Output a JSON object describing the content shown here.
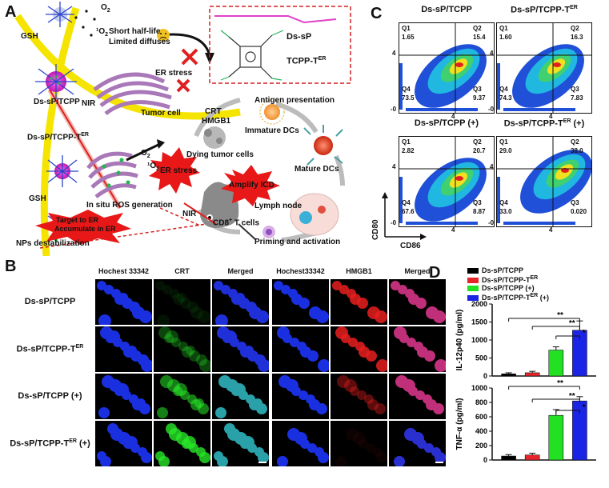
{
  "panels": {
    "a": "A",
    "b": "B",
    "c": "C",
    "d": "D"
  },
  "schematic": {
    "o2": "O",
    "o2_sub": "2",
    "singlet_o2": "¹O",
    "singlet_sub": "2",
    "short_half_life": "Short half-life",
    "limited_diffuses": "Limited diffuses",
    "gsh": "GSH",
    "ds_sp_tcpp": "Ds-sP/TCPP",
    "nir": "NIR",
    "tumor_cell": "Tumor cell",
    "ds_sp_tcpp_ter_main": "Ds-sP/TCPP-T",
    "ds_sp_tcpp_ter_sup": "ER",
    "er_stress": "ER stress",
    "er_stress_burst": "ER stress",
    "in_situ_ros": "In situ ROS generation",
    "target_er": "Target to ER",
    "accumulate_er": "Accumulate in ER",
    "nps_destab": "NPs destabilization",
    "legend_ds_sp": "Ds-sP",
    "legend_tcpp_main": "TCPP-T",
    "legend_tcpp_sup": "ER",
    "crt": "CRT",
    "hmgb1": "HMGB1",
    "antigen_presentation": "Antigen presentation",
    "immature_dcs": "Immature DCs",
    "dying_tumor_cells": "Dying tumor cells",
    "mature_dcs": "Mature DCs",
    "amplify_icd": "Amplify ICD",
    "lymph_node": "Lymph node",
    "nir2": "NIR",
    "cd8_main": "CD8",
    "cd8_sup": "+",
    "cd8_rest": " T cells",
    "priming": "Priming and activation"
  },
  "panel_b": {
    "headers_left": [
      "Hochest 33342",
      "CRT",
      "Merged"
    ],
    "headers_right": [
      "Hochest33342",
      "HMGB1",
      "Merged"
    ],
    "rows": [
      {
        "main": "Ds-sP/TCPP",
        "sup": "",
        "tail": ""
      },
      {
        "main": "Ds-sP/TCPP-T",
        "sup": "ER",
        "tail": ""
      },
      {
        "main": "Ds-sP/TCPP (+)",
        "sup": "",
        "tail": ""
      },
      {
        "main": "Ds-sP/TCPP-T",
        "sup": "ER",
        "tail": " (+)"
      }
    ]
  },
  "panel_c": {
    "plots": [
      {
        "title_main": "Ds-sP/TCPP",
        "title_sup": "",
        "title_tail": "",
        "q1": "1.65",
        "q2": "15.4",
        "q3": "9.37",
        "q4": "73.5"
      },
      {
        "title_main": "Ds-sP/TCPP-T",
        "title_sup": "ER",
        "title_tail": "",
        "q1": "1.60",
        "q2": "16.3",
        "q3": "7.83",
        "q4": "74.3"
      },
      {
        "title_main": "Ds-sP/TCPP (+)",
        "title_sup": "",
        "title_tail": "",
        "q1": "2.82",
        "q2": "20.7",
        "q3": "8.87",
        "q4": "67.6"
      },
      {
        "title_main": "Ds-sP/TCPP-T",
        "title_sup": "ER",
        "title_tail": " (+)",
        "q1": "29.0",
        "q2": "38.0",
        "q3": "0.020",
        "q4": "33.0"
      }
    ],
    "q_labels": [
      "Q1",
      "Q2",
      "Q3",
      "Q4"
    ],
    "xlabel": "CD86",
    "ylabel": "CD80",
    "tick4": "4",
    "tick_low": "-0"
  },
  "chart_data": [
    {
      "type": "bar",
      "categories": [
        "Ds-sP/TCPP",
        "Ds-sP/TCPP-TER",
        "Ds-sP/TCPP (+)",
        "Ds-sP/TCPP-TER (+)"
      ],
      "series": [
        {
          "name": "IL-12p40",
          "values": [
            60,
            90,
            720,
            1270
          ],
          "errors": [
            30,
            40,
            90,
            260
          ]
        }
      ],
      "ylabel": "IL-12p40 (pg/ml)",
      "ylim": [
        0,
        2000
      ],
      "yticks": [
        "0",
        "500",
        "1000",
        "1500",
        "2000"
      ],
      "colors": [
        "#000000",
        "#e8242b",
        "#22e022",
        "#1a24e6"
      ],
      "significance": [
        {
          "label": "**"
        },
        {
          "label": "**"
        },
        {
          "label": "*"
        }
      ]
    },
    {
      "type": "bar",
      "categories": [
        "Ds-sP/TCPP",
        "Ds-sP/TCPP-TER",
        "Ds-sP/TCPP (+)",
        "Ds-sP/TCPP-TER (+)"
      ],
      "series": [
        {
          "name": "TNF-α",
          "values": [
            55,
            70,
            620,
            820
          ],
          "errors": [
            20,
            25,
            80,
            60
          ]
        }
      ],
      "ylabel": "TNF-α (pg/ml)",
      "ylim": [
        0,
        1000
      ],
      "yticks": [
        "0",
        "200",
        "400",
        "600",
        "800",
        "1000"
      ],
      "colors": [
        "#000000",
        "#e8242b",
        "#22e022",
        "#1a24e6"
      ],
      "significance": [
        {
          "label": "**"
        },
        {
          "label": "**"
        },
        {
          "label": "*"
        }
      ]
    }
  ],
  "legend_d": [
    {
      "main": "Ds-sP/TCPP",
      "sup": "",
      "tail": "",
      "color": "#000000"
    },
    {
      "main": "Ds-sP/TCPP-T",
      "sup": "ER",
      "tail": "",
      "color": "#e8242b"
    },
    {
      "main": "Ds-sP/TCPP (+)",
      "sup": "",
      "tail": "",
      "color": "#22e022"
    },
    {
      "main": "Ds-sP/TCPP-T",
      "sup": "ER",
      "tail": " (+)",
      "color": "#1a24e6"
    }
  ],
  "colors": {
    "membrane": "#f5e400",
    "er_pink": "#a878b8",
    "nucleus": "#e02cc8",
    "burst": "#e81818",
    "ros_green": "#22b84a",
    "dashed_box": "#d42020",
    "arrow_grey": "#bcbcbc"
  }
}
